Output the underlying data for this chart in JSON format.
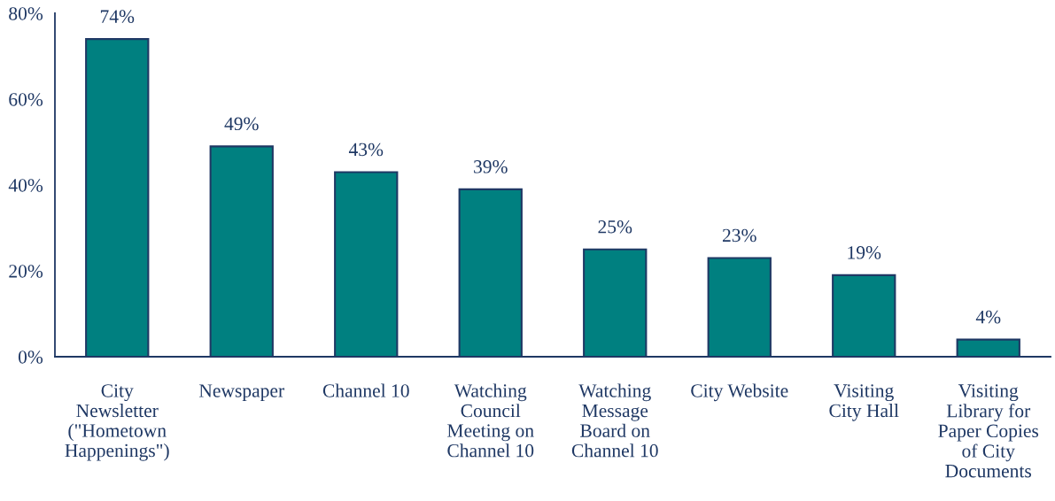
{
  "chart_data": {
    "type": "bar",
    "categories": [
      "City Newsletter (\"Hometown Happenings\")",
      "Newspaper",
      "Channel 10",
      "Watching Council Meeting on Channel 10",
      "Watching Message Board on Channel 10",
      "City Website",
      "Visiting City Hall",
      "Visiting Library for Paper Copies of City Documents"
    ],
    "values": [
      74,
      49,
      43,
      39,
      25,
      23,
      19,
      4
    ],
    "value_labels": [
      "74%",
      "49%",
      "43%",
      "39%",
      "25%",
      "23%",
      "19%",
      "4%"
    ],
    "color": "#008080",
    "ylim": [
      0,
      80
    ],
    "yticks": [
      {
        "value": 0,
        "label": "0%"
      },
      {
        "value": 20,
        "label": "20%"
      },
      {
        "value": 40,
        "label": "40%"
      },
      {
        "value": 60,
        "label": "60%"
      },
      {
        "value": 80,
        "label": "80%"
      }
    ],
    "grid": false,
    "legend": false
  }
}
